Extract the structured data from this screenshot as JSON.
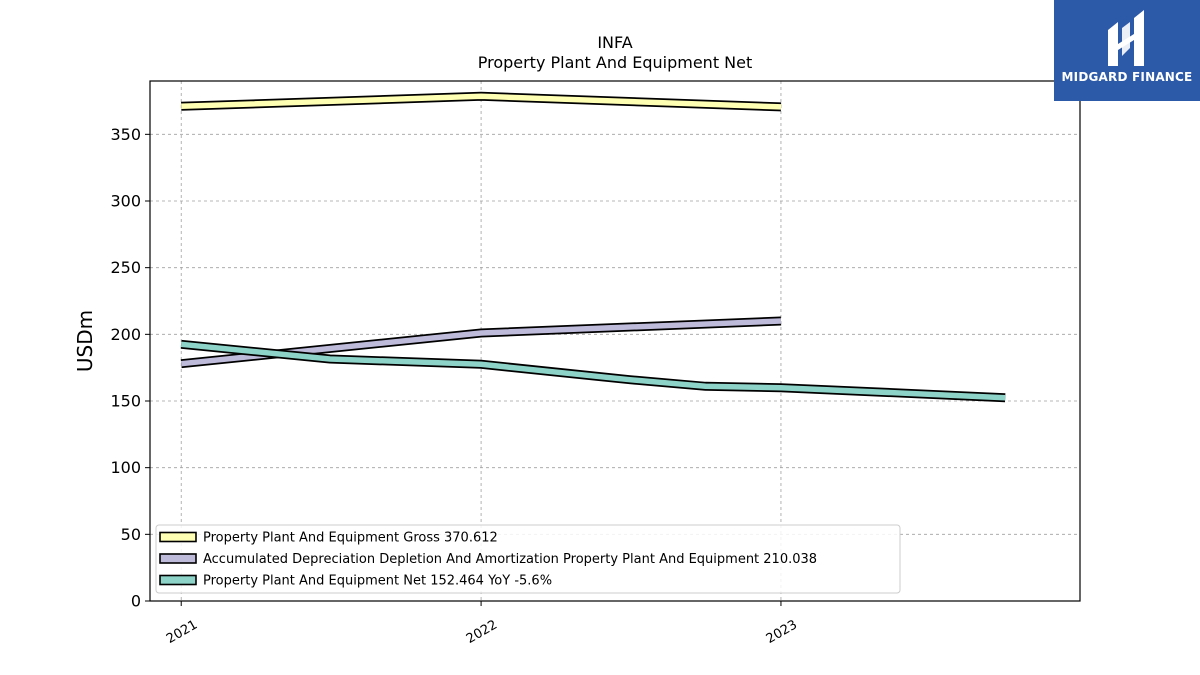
{
  "chart_data": {
    "type": "line",
    "title": "INFA",
    "subtitle": "Property Plant And Equipment Net",
    "ylabel": "USDm",
    "xlabel": "",
    "ylim": [
      0,
      390
    ],
    "yticks": [
      0,
      50,
      100,
      150,
      200,
      250,
      300,
      350
    ],
    "xlim": [
      "2020-11-24",
      "2023-12-31"
    ],
    "xticks": [
      {
        "date": "2021-01-01",
        "label": "2021"
      },
      {
        "date": "2022-01-01",
        "label": "2022"
      },
      {
        "date": "2023-01-01",
        "label": "2023"
      }
    ],
    "grid": true,
    "legend_position": "bottom-left",
    "series": [
      {
        "name": "Property Plant And Equipment Gross",
        "legend": "Property Plant And Equipment Gross  370.612",
        "color": "#ffffb3",
        "points": [
          {
            "x": "2021-01-01",
            "y": 371
          },
          {
            "x": "2022-01-01",
            "y": 378.5
          },
          {
            "x": "2023-01-01",
            "y": 370.6
          }
        ]
      },
      {
        "name": "Accumulated Depreciation Depletion And Amortization Property Plant And Equipment",
        "legend": "Accumulated Depreciation Depletion And Amortization Property Plant And Equipment  210.038",
        "color": "#bebada",
        "points": [
          {
            "x": "2021-01-01",
            "y": 178
          },
          {
            "x": "2022-01-01",
            "y": 201
          },
          {
            "x": "2023-01-01",
            "y": 210
          }
        ]
      },
      {
        "name": "Property Plant And Equipment Net",
        "legend": "Property Plant And Equipment Net  152.464 YoY -5.6%",
        "color": "#8dd3c7",
        "points": [
          {
            "x": "2021-01-01",
            "y": 192.5
          },
          {
            "x": "2021-07-01",
            "y": 181.5
          },
          {
            "x": "2022-01-01",
            "y": 177.5
          },
          {
            "x": "2022-07-01",
            "y": 166
          },
          {
            "x": "2022-10-01",
            "y": 161
          },
          {
            "x": "2023-01-01",
            "y": 160
          },
          {
            "x": "2023-10-01",
            "y": 152.5
          }
        ]
      }
    ]
  },
  "logo": {
    "text": "MIDGARD FINANCE"
  }
}
